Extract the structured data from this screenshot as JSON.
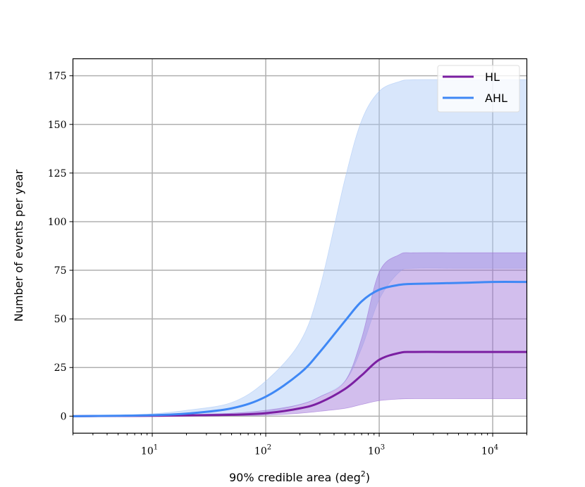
{
  "chart_data": {
    "type": "line",
    "title": "",
    "xlabel": "90% credible area (deg",
    "xlabel_sup": "2",
    "xlabel_end": ")",
    "ylabel": "Number of events per year",
    "xscale": "log",
    "xlim": [
      2,
      20000
    ],
    "ylim": [
      -8.75,
      183.75
    ],
    "grid": true,
    "legend_placement": "top-right",
    "x_ticks": [
      10,
      100,
      1000,
      10000
    ],
    "x_tick_labels": [
      {
        "base": "10",
        "exp": "1"
      },
      {
        "base": "10",
        "exp": "2"
      },
      {
        "base": "10",
        "exp": "3"
      },
      {
        "base": "10",
        "exp": "4"
      }
    ],
    "y_ticks": [
      0,
      25,
      50,
      75,
      100,
      125,
      150,
      175
    ],
    "y_tick_labels": [
      "0",
      "25",
      "50",
      "75",
      "100",
      "125",
      "150",
      "175"
    ],
    "x": [
      2,
      5,
      10,
      20,
      50,
      100,
      200,
      300,
      500,
      700,
      1000,
      1500,
      2000,
      5000,
      10000,
      20000
    ],
    "series": [
      {
        "name": "HL",
        "color": "#7b1fa2",
        "band_color": "#9c6fd6",
        "values": [
          0,
          0.1,
          0.2,
          0.4,
          0.7,
          1.5,
          4,
          7,
          14,
          21,
          29,
          32.5,
          33,
          33,
          33,
          33
        ],
        "band_lower": [
          0,
          0,
          0.1,
          0.2,
          0.3,
          0.5,
          1.5,
          2.5,
          4,
          6,
          8,
          8.8,
          9,
          9,
          9,
          9
        ],
        "band_upper": [
          0,
          0.2,
          0.4,
          0.8,
          1.5,
          3,
          6,
          10,
          18,
          40,
          74,
          83,
          84,
          84,
          84,
          84
        ]
      },
      {
        "name": "AHL",
        "color": "#3f88f5",
        "band_color": "#a9c8f7",
        "values": [
          0,
          0.2,
          0.5,
          1.3,
          4,
          10,
          22,
          33,
          49,
          59,
          65,
          67.5,
          68,
          68.5,
          69,
          69
        ],
        "band_lower": [
          0,
          0,
          0.1,
          0.3,
          1,
          2,
          6,
          10,
          18,
          35,
          60,
          74,
          76,
          76,
          76,
          76
        ],
        "band_upper": [
          0,
          0.5,
          1.2,
          3,
          7,
          18,
          38,
          66,
          122,
          152,
          167,
          172,
          173,
          173,
          173,
          173
        ]
      }
    ]
  }
}
